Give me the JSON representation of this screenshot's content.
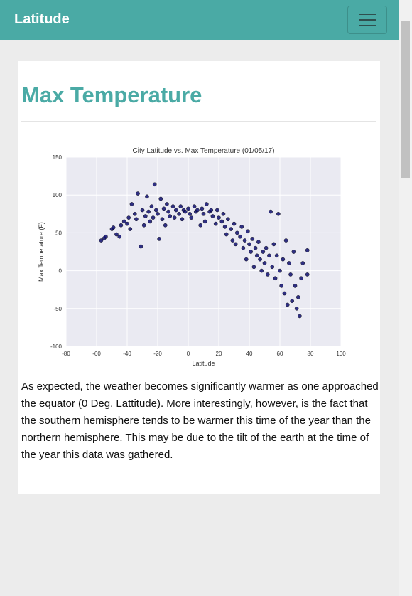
{
  "navbar": {
    "brand": "Latitude"
  },
  "heading": "Max Temperature",
  "paragraph": "As expected, the weather becomes significantly warmer as one approached the equator (0 Deg. Lattitude). More interestingly, however, is the fact that the southern hemisphere tends to be warmer this time of the year than the northern hemisphere. This may be due to the tilt of the earth at the time of the year this data was gathered.",
  "chart_data": {
    "type": "scatter",
    "title": "City Latitude vs. Max Temperature (01/05/17)",
    "x_label": "Latitude",
    "y_label": "Max Temperature (F)",
    "color": "#0e0e6e",
    "grid": true,
    "xlim": [
      -80,
      100
    ],
    "xticks": [
      -80,
      -60,
      -40,
      -20,
      0,
      20,
      40,
      60,
      80,
      100
    ],
    "ylim": [
      -100,
      150
    ],
    "yticks": [
      -100,
      -50,
      0,
      50,
      100,
      150
    ],
    "x": [
      -57,
      -55,
      -54,
      -50,
      -49,
      -47,
      -45,
      -44,
      -42,
      -40,
      -39,
      -38,
      -37,
      -35,
      -34,
      -33,
      -31,
      -30,
      -29,
      -28,
      -27,
      -26,
      -25,
      -24,
      -23,
      -22,
      -21,
      -20,
      -19,
      -18,
      -17,
      -16,
      -15,
      -14,
      -13,
      -12,
      -10,
      -9,
      -8,
      -6,
      -5,
      -4,
      -3,
      -2,
      0,
      1,
      2,
      4,
      5,
      6,
      8,
      9,
      10,
      11,
      12,
      14,
      15,
      16,
      18,
      19,
      20,
      22,
      23,
      24,
      25,
      26,
      28,
      29,
      30,
      31,
      32,
      34,
      35,
      36,
      37,
      38,
      39,
      40,
      41,
      42,
      43,
      44,
      45,
      46,
      47,
      48,
      49,
      50,
      51,
      52,
      53,
      54,
      55,
      56,
      57,
      58,
      59,
      60,
      61,
      62,
      63,
      64,
      65,
      66,
      67,
      68,
      69,
      70,
      71,
      72,
      73,
      74,
      75,
      78,
      78
    ],
    "values": [
      40,
      43,
      45,
      55,
      57,
      48,
      45,
      60,
      65,
      62,
      70,
      55,
      88,
      75,
      68,
      102,
      32,
      80,
      60,
      72,
      98,
      78,
      65,
      85,
      70,
      114,
      80,
      75,
      42,
      95,
      68,
      82,
      60,
      88,
      78,
      72,
      85,
      70,
      80,
      75,
      85,
      68,
      80,
      78,
      82,
      75,
      70,
      85,
      78,
      80,
      60,
      82,
      75,
      65,
      88,
      78,
      80,
      72,
      62,
      80,
      70,
      65,
      75,
      58,
      48,
      68,
      55,
      40,
      62,
      35,
      50,
      45,
      58,
      30,
      40,
      15,
      52,
      35,
      25,
      42,
      5,
      30,
      20,
      38,
      15,
      0,
      25,
      10,
      30,
      -5,
      20,
      78,
      5,
      35,
      -10,
      20,
      75,
      0,
      -20,
      15,
      -30,
      40,
      -45,
      10,
      -5,
      -40,
      25,
      -20,
      -50,
      -35,
      -60,
      -10,
      10,
      -5,
      27
    ]
  }
}
